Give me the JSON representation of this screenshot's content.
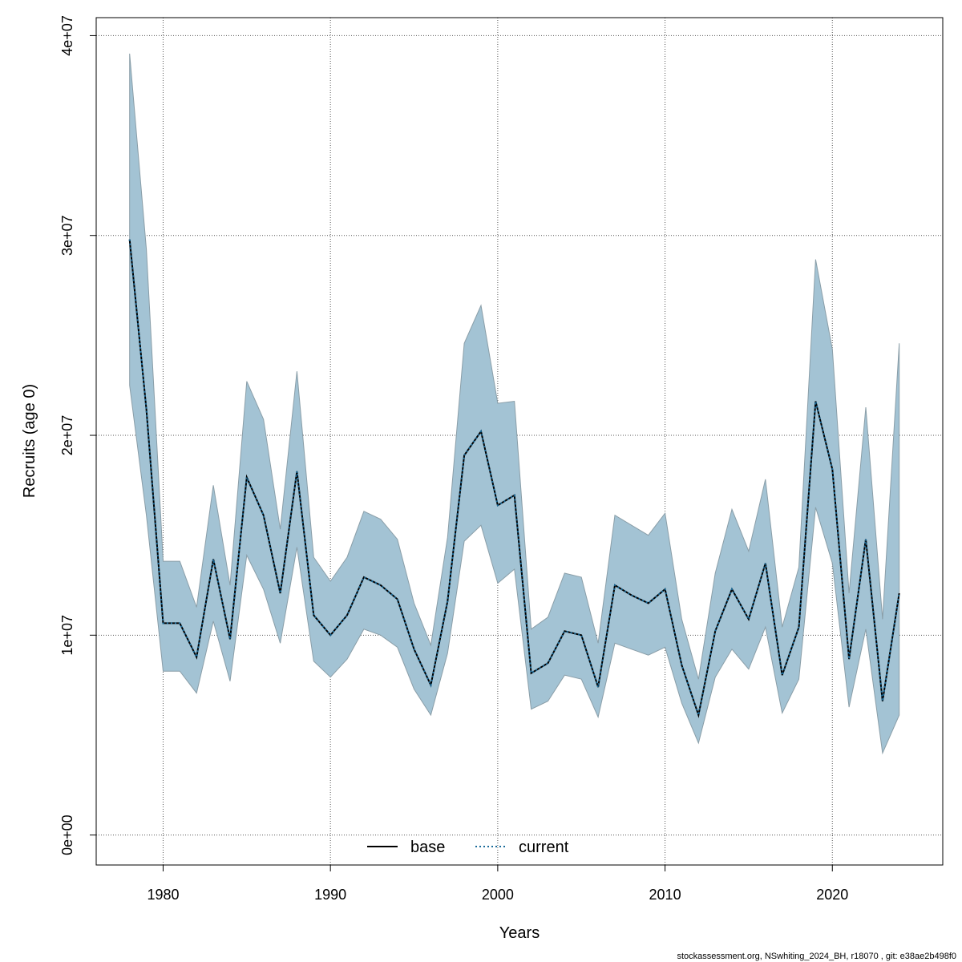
{
  "chart_data": {
    "type": "area",
    "xlabel": "Years",
    "ylabel": "Recruits (age 0)",
    "xlim": [
      1976,
      2026.6
    ],
    "ylim": [
      -1500000,
      40900000
    ],
    "x_ticks": [
      1980,
      1990,
      2000,
      2010,
      2020
    ],
    "x_tick_labels": [
      "1980",
      "1990",
      "2000",
      "2010",
      "2020"
    ],
    "y_ticks": [
      0,
      10000000,
      20000000,
      30000000,
      40000000
    ],
    "y_tick_labels": [
      "0e+00",
      "1e+07",
      "2e+07",
      "3e+07",
      "4e+07"
    ],
    "grid": true,
    "legend_position": "bottom",
    "x": [
      1978,
      1979,
      1980,
      1981,
      1982,
      1983,
      1984,
      1985,
      1986,
      1987,
      1988,
      1989,
      1990,
      1991,
      1992,
      1993,
      1994,
      1995,
      1996,
      1997,
      1998,
      1999,
      2000,
      2001,
      2002,
      2003,
      2004,
      2005,
      2006,
      2007,
      2008,
      2009,
      2010,
      2011,
      2012,
      2013,
      2014,
      2015,
      2016,
      2017,
      2018,
      2019,
      2020,
      2021,
      2022,
      2023,
      2024
    ],
    "band": {
      "color": "#a3c3d4",
      "upper": [
        39100000,
        29300000,
        13700000,
        13700000,
        11400000,
        17500000,
        12500000,
        22700000,
        20800000,
        15300000,
        23200000,
        13900000,
        12700000,
        13900000,
        16200000,
        15800000,
        14800000,
        11600000,
        9500000,
        14900000,
        24600000,
        26500000,
        21600000,
        21700000,
        10300000,
        10900000,
        13100000,
        12900000,
        9600000,
        16000000,
        15500000,
        15000000,
        16100000,
        10800000,
        7800000,
        13100000,
        16300000,
        14200000,
        17800000,
        10400000,
        13400000,
        28800000,
        24300000,
        12100000,
        21400000,
        10800000,
        24600000
      ],
      "lower": [
        22500000,
        16000000,
        8200000,
        8200000,
        7100000,
        10700000,
        7700000,
        14000000,
        12300000,
        9600000,
        14400000,
        8700000,
        7900000,
        8800000,
        10300000,
        10000000,
        9400000,
        7300000,
        6000000,
        9100000,
        14700000,
        15500000,
        12600000,
        13300000,
        6300000,
        6700000,
        8000000,
        7800000,
        5900000,
        9600000,
        9300000,
        9000000,
        9400000,
        6600000,
        4600000,
        7900000,
        9300000,
        8300000,
        10400000,
        6100000,
        7800000,
        16400000,
        13600000,
        6400000,
        10300000,
        4100000,
        6000000
      ]
    },
    "series": [
      {
        "name": "base",
        "color": "#000000",
        "dash": "solid",
        "values": [
          29800000,
          21300000,
          10600000,
          10600000,
          8900000,
          13800000,
          9800000,
          17900000,
          16000000,
          12100000,
          18200000,
          11000000,
          10000000,
          11000000,
          12900000,
          12500000,
          11800000,
          9300000,
          7500000,
          11700000,
          19000000,
          20200000,
          16500000,
          17000000,
          8100000,
          8600000,
          10200000,
          10000000,
          7400000,
          12500000,
          12000000,
          11600000,
          12300000,
          8500000,
          6000000,
          10200000,
          12300000,
          10800000,
          13600000,
          8000000,
          10400000,
          21700000,
          18300000,
          8800000,
          14800000,
          6700000,
          12100000
        ]
      },
      {
        "name": "current",
        "color": "#1a6b9a",
        "dash": "dotted",
        "values": [
          29800000,
          21300000,
          10600000,
          10600000,
          8900000,
          13800000,
          9800000,
          17900000,
          16000000,
          12100000,
          18200000,
          11000000,
          10000000,
          11000000,
          12900000,
          12500000,
          11800000,
          9300000,
          7500000,
          11700000,
          19000000,
          20200000,
          16500000,
          17000000,
          8100000,
          8600000,
          10200000,
          10000000,
          7400000,
          12500000,
          12000000,
          11600000,
          12300000,
          8500000,
          6000000,
          10200000,
          12300000,
          10800000,
          13600000,
          8000000,
          10400000,
          21700000,
          18300000,
          8800000,
          14800000,
          6700000,
          12100000
        ]
      }
    ],
    "footnote": "stockassessment.org, NSwhiting_2024_BH, r18070 , git: e38ae2b498f0"
  }
}
